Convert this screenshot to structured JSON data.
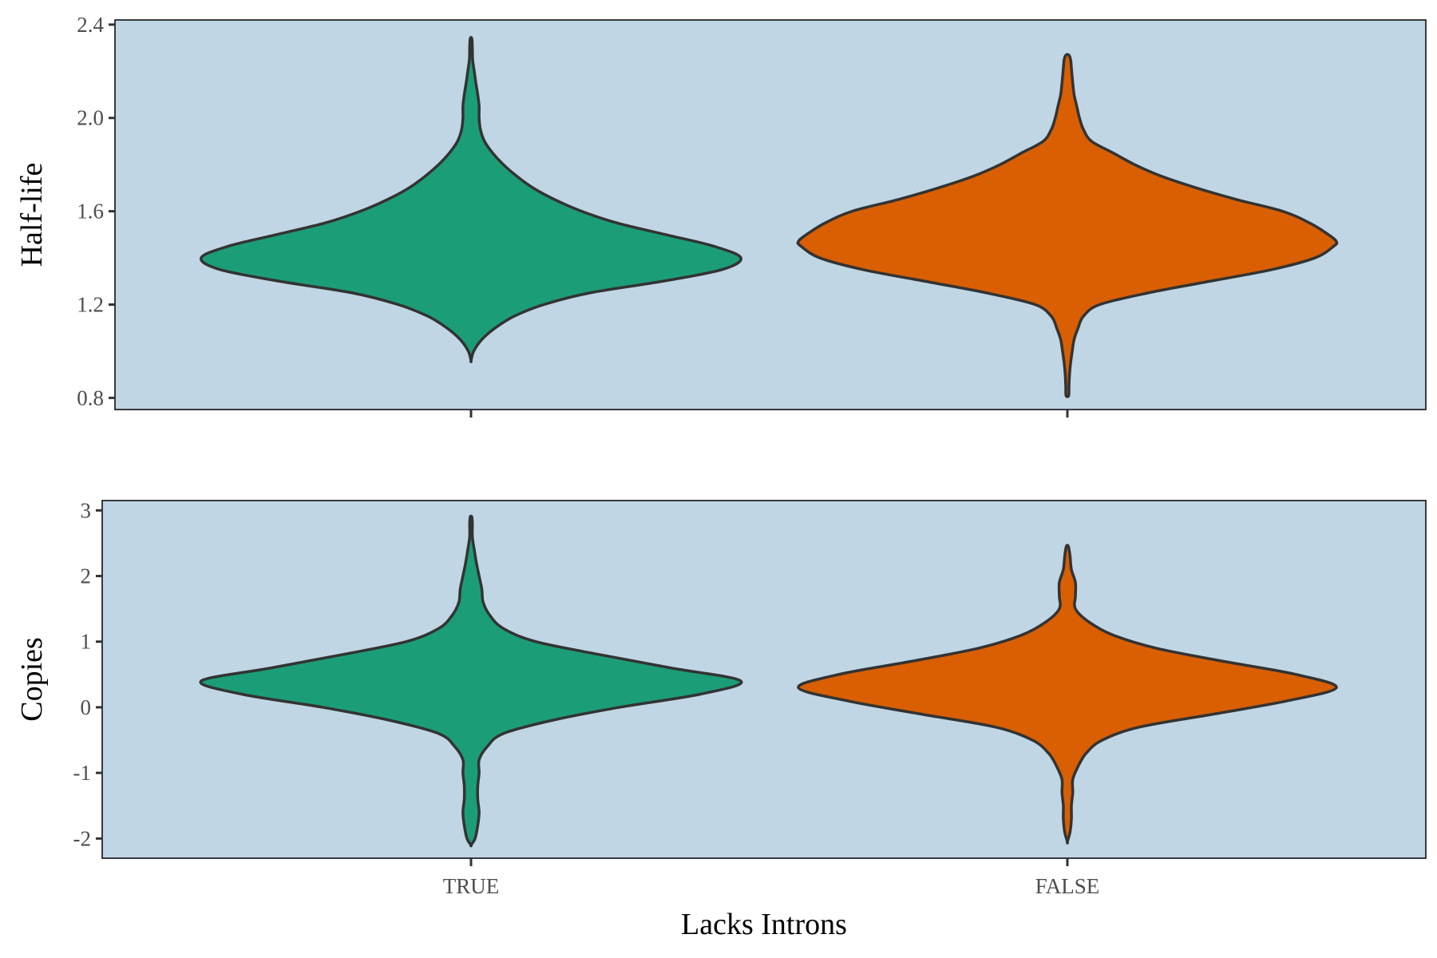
{
  "chart_data": {
    "type": "violin",
    "categories": [
      "TRUE",
      "FALSE"
    ],
    "xlabel": "Lacks Introns",
    "colors": {
      "TRUE": "#1b9e77",
      "FALSE": "#d95f02",
      "panel_bg": "#c0d6e4",
      "outline": "#333333"
    },
    "panels": [
      {
        "ylabel": "Half-life",
        "ylim": [
          0.75,
          2.42
        ],
        "yticks": [
          0.8,
          1.2,
          1.6,
          2.0,
          2.4
        ],
        "ytick_labels": [
          "0.8",
          "1.2",
          "1.6",
          "2.0",
          "2.4"
        ],
        "show_x_tick_labels": false,
        "violins": [
          {
            "category": "TRUE",
            "profile": [
              [
                0.96,
                0.0
              ],
              [
                1.0,
                0.01
              ],
              [
                1.05,
                0.04
              ],
              [
                1.1,
                0.09
              ],
              [
                1.15,
                0.16
              ],
              [
                1.2,
                0.27
              ],
              [
                1.25,
                0.44
              ],
              [
                1.3,
                0.71
              ],
              [
                1.35,
                0.93
              ],
              [
                1.4,
                1.0
              ],
              [
                1.45,
                0.9
              ],
              [
                1.5,
                0.72
              ],
              [
                1.55,
                0.54
              ],
              [
                1.6,
                0.41
              ],
              [
                1.65,
                0.31
              ],
              [
                1.7,
                0.23
              ],
              [
                1.75,
                0.17
              ],
              [
                1.8,
                0.12
              ],
              [
                1.85,
                0.08
              ],
              [
                1.9,
                0.05
              ],
              [
                1.95,
                0.035
              ],
              [
                2.0,
                0.03
              ],
              [
                2.05,
                0.03
              ],
              [
                2.1,
                0.025
              ],
              [
                2.15,
                0.018
              ],
              [
                2.2,
                0.012
              ],
              [
                2.25,
                0.006
              ],
              [
                2.3,
                0.005
              ],
              [
                2.34,
                0.003
              ]
            ]
          },
          {
            "category": "FALSE",
            "profile": [
              [
                0.81,
                0.005
              ],
              [
                0.85,
                0.006
              ],
              [
                0.9,
                0.008
              ],
              [
                0.95,
                0.012
              ],
              [
                1.0,
                0.018
              ],
              [
                1.05,
                0.025
              ],
              [
                1.1,
                0.04
              ],
              [
                1.15,
                0.06
              ],
              [
                1.2,
                0.12
              ],
              [
                1.25,
                0.3
              ],
              [
                1.3,
                0.53
              ],
              [
                1.35,
                0.76
              ],
              [
                1.4,
                0.92
              ],
              [
                1.45,
                0.99
              ],
              [
                1.47,
                1.0
              ],
              [
                1.5,
                0.97
              ],
              [
                1.55,
                0.9
              ],
              [
                1.6,
                0.8
              ],
              [
                1.65,
                0.63
              ],
              [
                1.7,
                0.48
              ],
              [
                1.75,
                0.35
              ],
              [
                1.8,
                0.25
              ],
              [
                1.85,
                0.17
              ],
              [
                1.9,
                0.09
              ],
              [
                1.95,
                0.06
              ],
              [
                2.0,
                0.045
              ],
              [
                2.05,
                0.035
              ],
              [
                2.1,
                0.025
              ],
              [
                2.15,
                0.02
              ],
              [
                2.2,
                0.016
              ],
              [
                2.25,
                0.012
              ],
              [
                2.27,
                0.005
              ]
            ]
          }
        ]
      },
      {
        "ylabel": "Copies",
        "ylim": [
          -2.3,
          3.15
        ],
        "yticks": [
          -2,
          -1,
          0,
          1,
          2,
          3
        ],
        "ytick_labels": [
          "-2",
          "-1",
          "0",
          "1",
          "2",
          "3"
        ],
        "show_x_tick_labels": true,
        "violins": [
          {
            "category": "TRUE",
            "profile": [
              [
                -2.1,
                0.0
              ],
              [
                -2.0,
                0.015
              ],
              [
                -1.8,
                0.025
              ],
              [
                -1.6,
                0.03
              ],
              [
                -1.4,
                0.025
              ],
              [
                -1.2,
                0.025
              ],
              [
                -1.0,
                0.03
              ],
              [
                -0.8,
                0.03
              ],
              [
                -0.6,
                0.06
              ],
              [
                -0.4,
                0.12
              ],
              [
                -0.2,
                0.3
              ],
              [
                0.0,
                0.55
              ],
              [
                0.2,
                0.85
              ],
              [
                0.4,
                1.0
              ],
              [
                0.6,
                0.74
              ],
              [
                0.8,
                0.48
              ],
              [
                1.0,
                0.24
              ],
              [
                1.2,
                0.12
              ],
              [
                1.4,
                0.07
              ],
              [
                1.6,
                0.045
              ],
              [
                1.8,
                0.04
              ],
              [
                2.0,
                0.03
              ],
              [
                2.2,
                0.02
              ],
              [
                2.4,
                0.012
              ],
              [
                2.6,
                0.005
              ],
              [
                2.8,
                0.005
              ],
              [
                2.9,
                0.003
              ]
            ]
          },
          {
            "category": "FALSE",
            "profile": [
              [
                -2.05,
                0.0
              ],
              [
                -1.9,
                0.01
              ],
              [
                -1.7,
                0.015
              ],
              [
                -1.5,
                0.015
              ],
              [
                -1.3,
                0.02
              ],
              [
                -1.1,
                0.02
              ],
              [
                -0.9,
                0.04
              ],
              [
                -0.7,
                0.07
              ],
              [
                -0.5,
                0.13
              ],
              [
                -0.3,
                0.27
              ],
              [
                -0.1,
                0.55
              ],
              [
                0.1,
                0.82
              ],
              [
                0.3,
                1.0
              ],
              [
                0.5,
                0.85
              ],
              [
                0.7,
                0.58
              ],
              [
                0.9,
                0.33
              ],
              [
                1.1,
                0.17
              ],
              [
                1.3,
                0.08
              ],
              [
                1.5,
                0.03
              ],
              [
                1.7,
                0.03
              ],
              [
                1.9,
                0.03
              ],
              [
                2.1,
                0.015
              ],
              [
                2.3,
                0.01
              ],
              [
                2.45,
                0.004
              ]
            ]
          }
        ]
      }
    ]
  }
}
